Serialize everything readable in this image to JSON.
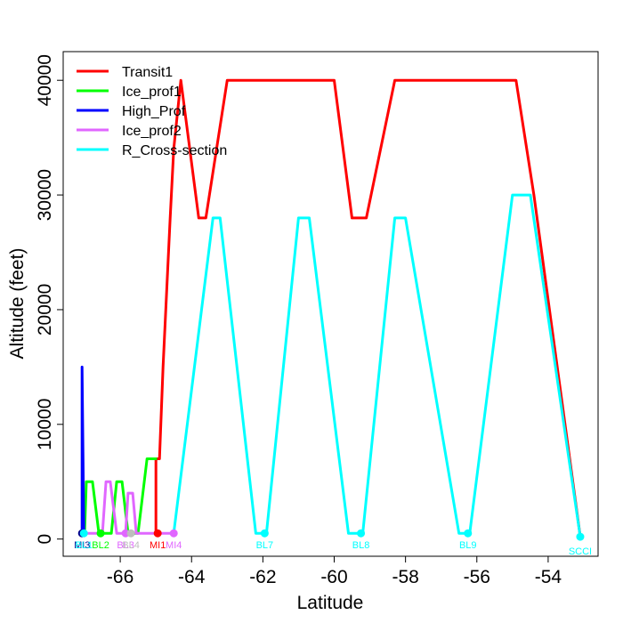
{
  "chart_data": {
    "type": "line",
    "xlabel": "Latitude",
    "ylabel": "Altitude (feet)",
    "xlim": [
      -67.6,
      -52.6
    ],
    "ylim": [
      -1500,
      42500
    ],
    "x_ticks": [
      -66,
      -64,
      -62,
      -60,
      -58,
      -56,
      -54
    ],
    "y_ticks": [
      0,
      10000,
      20000,
      30000,
      40000
    ],
    "grid": false,
    "legend_position": "top-left",
    "series": [
      {
        "name": "Transit1",
        "color": "#ff0000",
        "points": [
          [
            -65.0,
            500
          ],
          [
            -65.0,
            7000
          ],
          [
            -64.9,
            7000
          ],
          [
            -64.8,
            15000
          ],
          [
            -64.6,
            28000
          ],
          [
            -64.5,
            34000
          ],
          [
            -64.3,
            40000
          ],
          [
            -63.8,
            28000
          ],
          [
            -63.6,
            28000
          ],
          [
            -63.0,
            40000
          ],
          [
            -60.0,
            40000
          ],
          [
            -59.5,
            28000
          ],
          [
            -59.1,
            28000
          ],
          [
            -58.3,
            40000
          ],
          [
            -54.9,
            40000
          ],
          [
            -54.4,
            30000
          ],
          [
            -53.1,
            200
          ]
        ]
      },
      {
        "name": "Ice_prof1",
        "color": "#00ff00",
        "points": [
          [
            -67.0,
            500
          ],
          [
            -66.95,
            5000
          ],
          [
            -66.78,
            5000
          ],
          [
            -66.6,
            500
          ],
          [
            -66.25,
            500
          ],
          [
            -66.1,
            5000
          ],
          [
            -65.95,
            5000
          ],
          [
            -65.78,
            500
          ],
          [
            -65.5,
            500
          ],
          [
            -65.25,
            7000
          ],
          [
            -65.0,
            7000
          ]
        ]
      },
      {
        "name": "High_Prof",
        "color": "#0000ff",
        "points": [
          [
            -67.07,
            500
          ],
          [
            -67.07,
            15000
          ],
          [
            -67.02,
            500
          ]
        ]
      },
      {
        "name": "Ice_prof2",
        "color": "#e066ff",
        "points": [
          [
            -67.0,
            500
          ],
          [
            -66.5,
            500
          ],
          [
            -66.4,
            5000
          ],
          [
            -66.28,
            5000
          ],
          [
            -66.1,
            500
          ],
          [
            -65.85,
            500
          ],
          [
            -65.78,
            4000
          ],
          [
            -65.65,
            4000
          ],
          [
            -65.55,
            500
          ],
          [
            -64.5,
            500
          ]
        ]
      },
      {
        "name": "R_Cross-section",
        "color": "#00ffff",
        "points": [
          [
            -64.5,
            500
          ],
          [
            -63.4,
            28000
          ],
          [
            -63.2,
            28000
          ],
          [
            -62.2,
            500
          ],
          [
            -61.9,
            500
          ],
          [
            -61.0,
            28000
          ],
          [
            -60.7,
            28000
          ],
          [
            -59.6,
            500
          ],
          [
            -59.2,
            500
          ],
          [
            -58.3,
            28000
          ],
          [
            -58.0,
            28000
          ],
          [
            -56.5,
            500
          ],
          [
            -56.2,
            500
          ],
          [
            -55.0,
            30000
          ],
          [
            -54.5,
            30000
          ],
          [
            -53.1,
            200
          ]
        ]
      }
    ],
    "markers": [
      {
        "label": "MI3",
        "lat": -67.07,
        "alt": 500,
        "color": "#00008b"
      },
      {
        "label": "BL1",
        "lat": -67.02,
        "alt": 500,
        "color": "#00ffff"
      },
      {
        "label": "BL2",
        "lat": -66.55,
        "alt": 500,
        "color": "#00ff00"
      },
      {
        "label": "BL3",
        "lat": -65.85,
        "alt": 500,
        "color": "#e066ff"
      },
      {
        "label": "BL4",
        "lat": -65.7,
        "alt": 500,
        "color": "#bebebe"
      },
      {
        "label": "MI1",
        "lat": -64.95,
        "alt": 500,
        "color": "#ff0000"
      },
      {
        "label": "MI4",
        "lat": -64.5,
        "alt": 500,
        "color": "#e066ff"
      },
      {
        "label": "BL7",
        "lat": -61.95,
        "alt": 500,
        "color": "#00ffff"
      },
      {
        "label": "BL8",
        "lat": -59.25,
        "alt": 500,
        "color": "#00ffff"
      },
      {
        "label": "BL9",
        "lat": -56.25,
        "alt": 500,
        "color": "#00ffff"
      },
      {
        "label": "SCCI",
        "lat": -53.1,
        "alt": 200,
        "color": "#00ffff"
      }
    ]
  }
}
